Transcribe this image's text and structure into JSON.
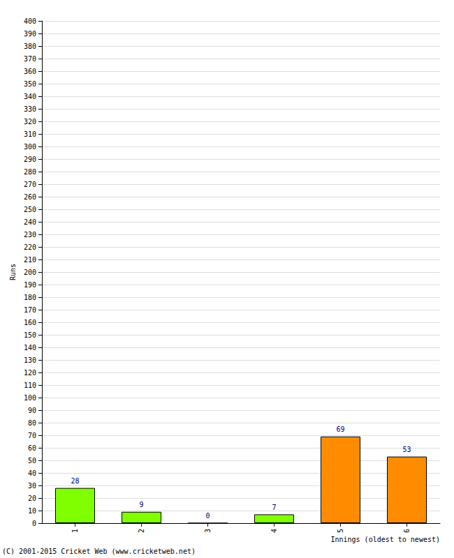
{
  "chart_data": {
    "type": "bar",
    "categories": [
      "1",
      "2",
      "3",
      "4",
      "5",
      "6"
    ],
    "values": [
      28,
      9,
      0,
      7,
      69,
      53
    ],
    "colors": [
      "#80ff00",
      "#80ff00",
      "#80ff00",
      "#80ff00",
      "#ff8c00",
      "#ff8c00"
    ],
    "ylabel": "Runs",
    "xlabel": "Innings (oldest to newest)",
    "annotations": [
      "(C) 2001-2015 Cricket Web (www.cricketweb.net)"
    ],
    "ylim": [
      0,
      400
    ],
    "yticks": [
      0,
      10,
      20,
      30,
      40,
      50,
      60,
      70,
      80,
      90,
      100,
      110,
      120,
      130,
      140,
      150,
      160,
      170,
      180,
      190,
      200,
      210,
      220,
      230,
      240,
      250,
      260,
      270,
      280,
      290,
      300,
      310,
      320,
      330,
      340,
      350,
      360,
      370,
      380,
      390,
      400
    ],
    "grid": true,
    "data_labels": true
  }
}
